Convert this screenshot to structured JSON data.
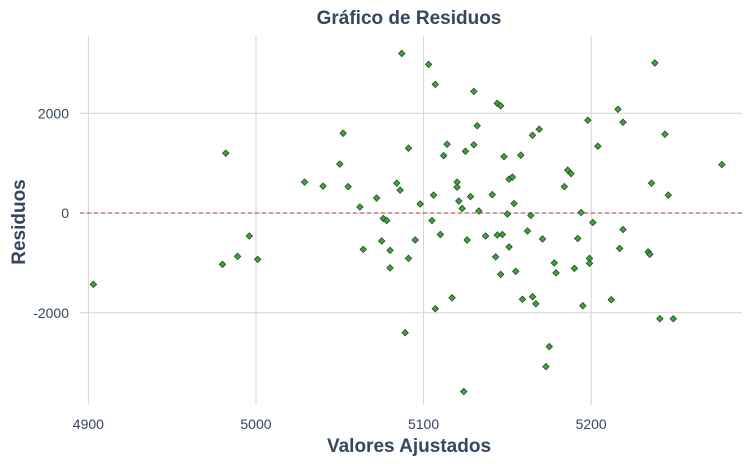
{
  "chart_data": {
    "type": "scatter",
    "title": "Gráfico de Residuos",
    "xlabel": "Valores Ajustados",
    "ylabel": "Residuos",
    "xlim": [
      4895,
      5290
    ],
    "ylim": [
      -3850,
      3550
    ],
    "xticks": [
      4900,
      5000,
      5100,
      5200
    ],
    "yticks": [
      -2000,
      0,
      2000
    ],
    "xtick_labels": [
      "4900",
      "5000",
      "5100",
      "5200"
    ],
    "ytick_labels": [
      "-2000",
      "0",
      "2000"
    ],
    "grid": true,
    "reference_line": {
      "y": 0,
      "style": "dashed",
      "color": "#b5304a"
    },
    "point_color": "#3fa33f",
    "points": [
      {
        "x": 4903,
        "y": -1430
      },
      {
        "x": 4980,
        "y": -1030
      },
      {
        "x": 4982,
        "y": 1200
      },
      {
        "x": 4989,
        "y": -870
      },
      {
        "x": 4996,
        "y": -460
      },
      {
        "x": 5001,
        "y": -930
      },
      {
        "x": 5029,
        "y": 620
      },
      {
        "x": 5040,
        "y": 540
      },
      {
        "x": 5050,
        "y": 980
      },
      {
        "x": 5052,
        "y": 1600
      },
      {
        "x": 5055,
        "y": 530
      },
      {
        "x": 5062,
        "y": 120
      },
      {
        "x": 5064,
        "y": -730
      },
      {
        "x": 5072,
        "y": 300
      },
      {
        "x": 5075,
        "y": -560
      },
      {
        "x": 5076,
        "y": -110
      },
      {
        "x": 5078,
        "y": -150
      },
      {
        "x": 5080,
        "y": -750
      },
      {
        "x": 5080,
        "y": -1100
      },
      {
        "x": 5084,
        "y": 600
      },
      {
        "x": 5086,
        "y": 460
      },
      {
        "x": 5087,
        "y": 3200
      },
      {
        "x": 5089,
        "y": -2400
      },
      {
        "x": 5091,
        "y": 1300
      },
      {
        "x": 5091,
        "y": -910
      },
      {
        "x": 5095,
        "y": -540
      },
      {
        "x": 5098,
        "y": 180
      },
      {
        "x": 5103,
        "y": 2980
      },
      {
        "x": 5105,
        "y": -150
      },
      {
        "x": 5106,
        "y": 360
      },
      {
        "x": 5107,
        "y": 2580
      },
      {
        "x": 5107,
        "y": -1920
      },
      {
        "x": 5110,
        "y": -430
      },
      {
        "x": 5112,
        "y": 1150
      },
      {
        "x": 5114,
        "y": 1380
      },
      {
        "x": 5117,
        "y": -1700
      },
      {
        "x": 5120,
        "y": 620
      },
      {
        "x": 5120,
        "y": 520
      },
      {
        "x": 5121,
        "y": 240
      },
      {
        "x": 5123,
        "y": 90
      },
      {
        "x": 5124,
        "y": -3580
      },
      {
        "x": 5125,
        "y": 1240
      },
      {
        "x": 5126,
        "y": -540
      },
      {
        "x": 5128,
        "y": 330
      },
      {
        "x": 5130,
        "y": 2440
      },
      {
        "x": 5130,
        "y": 1370
      },
      {
        "x": 5132,
        "y": 1750
      },
      {
        "x": 5133,
        "y": 40
      },
      {
        "x": 5137,
        "y": -460
      },
      {
        "x": 5141,
        "y": 370
      },
      {
        "x": 5143,
        "y": -880
      },
      {
        "x": 5144,
        "y": -440
      },
      {
        "x": 5144,
        "y": 2200
      },
      {
        "x": 5146,
        "y": 2150
      },
      {
        "x": 5146,
        "y": -1230
      },
      {
        "x": 5147,
        "y": -430
      },
      {
        "x": 5148,
        "y": 1130
      },
      {
        "x": 5150,
        "y": -20
      },
      {
        "x": 5151,
        "y": 680
      },
      {
        "x": 5151,
        "y": -680
      },
      {
        "x": 5153,
        "y": 720
      },
      {
        "x": 5154,
        "y": 190
      },
      {
        "x": 5155,
        "y": -1170
      },
      {
        "x": 5158,
        "y": 1160
      },
      {
        "x": 5159,
        "y": -1730
      },
      {
        "x": 5162,
        "y": -360
      },
      {
        "x": 5164,
        "y": -50
      },
      {
        "x": 5165,
        "y": 1560
      },
      {
        "x": 5165,
        "y": -1680
      },
      {
        "x": 5167,
        "y": -1820
      },
      {
        "x": 5169,
        "y": 1680
      },
      {
        "x": 5171,
        "y": -520
      },
      {
        "x": 5173,
        "y": -3080
      },
      {
        "x": 5175,
        "y": -2680
      },
      {
        "x": 5178,
        "y": -1000
      },
      {
        "x": 5179,
        "y": -1200
      },
      {
        "x": 5184,
        "y": 530
      },
      {
        "x": 5186,
        "y": 860
      },
      {
        "x": 5188,
        "y": 790
      },
      {
        "x": 5190,
        "y": -1110
      },
      {
        "x": 5192,
        "y": -510
      },
      {
        "x": 5194,
        "y": 10
      },
      {
        "x": 5195,
        "y": -1860
      },
      {
        "x": 5198,
        "y": 1860
      },
      {
        "x": 5199,
        "y": -910
      },
      {
        "x": 5199,
        "y": -1010
      },
      {
        "x": 5201,
        "y": -190
      },
      {
        "x": 5204,
        "y": 1340
      },
      {
        "x": 5212,
        "y": -1740
      },
      {
        "x": 5216,
        "y": 2080
      },
      {
        "x": 5217,
        "y": -710
      },
      {
        "x": 5219,
        "y": 1820
      },
      {
        "x": 5219,
        "y": -330
      },
      {
        "x": 5234,
        "y": -780
      },
      {
        "x": 5235,
        "y": -830
      },
      {
        "x": 5236,
        "y": 600
      },
      {
        "x": 5238,
        "y": 3010
      },
      {
        "x": 5241,
        "y": -2120
      },
      {
        "x": 5244,
        "y": 1580
      },
      {
        "x": 5246,
        "y": 360
      },
      {
        "x": 5249,
        "y": -2120
      },
      {
        "x": 5278,
        "y": 970
      }
    ]
  }
}
